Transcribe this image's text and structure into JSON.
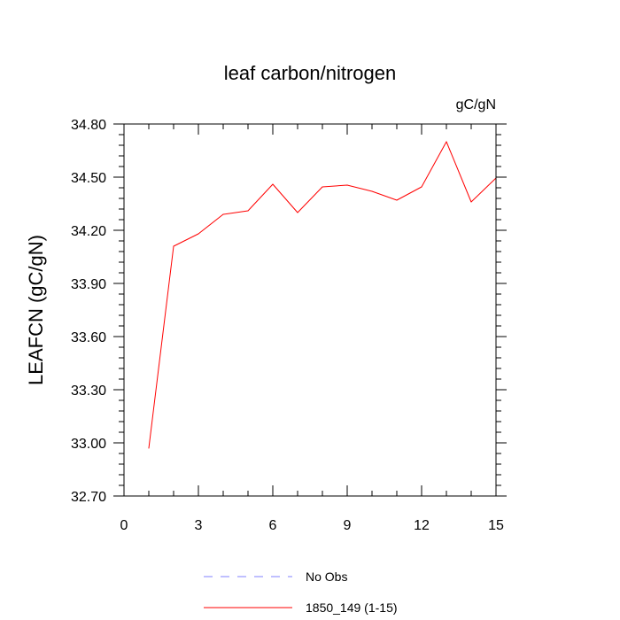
{
  "chart_data": {
    "type": "line",
    "title": "leaf carbon/nitrogen",
    "units_label": "gC/gN",
    "ylabel": "LEAFCN  (gC/gN)",
    "xlabel": "",
    "xlim": [
      0,
      15
    ],
    "ylim": [
      32.7,
      34.8
    ],
    "x_ticks": [
      0,
      3,
      6,
      9,
      12,
      15
    ],
    "x_tick_labels": [
      "0",
      "3",
      "6",
      "9",
      "12",
      "15"
    ],
    "y_ticks": [
      32.7,
      33.0,
      33.3,
      33.6,
      33.9,
      34.2,
      34.5,
      34.8
    ],
    "y_tick_labels": [
      "32.70",
      "33.00",
      "33.30",
      "33.60",
      "33.90",
      "34.20",
      "34.50",
      "34.80"
    ],
    "grid": false,
    "legend_position": "bottom",
    "series": [
      {
        "name": "No Obs",
        "color": "#8080ff",
        "dash": "dashed",
        "x": [],
        "y": []
      },
      {
        "name": "1850_149 (1-15)",
        "color": "#ff0000",
        "dash": "solid",
        "x": [
          1,
          2,
          3,
          4,
          5,
          6,
          7,
          8,
          9,
          10,
          11,
          12,
          13,
          14,
          15
        ],
        "y": [
          32.97,
          34.11,
          34.18,
          34.29,
          34.31,
          34.46,
          34.3,
          34.445,
          34.455,
          34.42,
          34.37,
          34.445,
          34.7,
          34.36,
          34.495
        ]
      }
    ]
  }
}
